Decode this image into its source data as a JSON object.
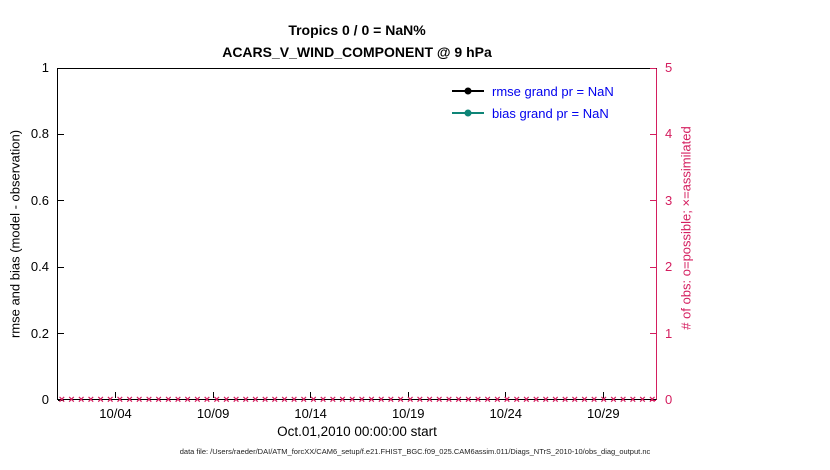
{
  "title": {
    "line1": "Tropics 0 / 0 = NaN%",
    "line2": "ACARS_V_WIND_COMPONENT @ 9 hPa"
  },
  "footer": {
    "text": "data file: /Users/raeder/DAI/ATM_forcXX/CAM6_setup/f.e21.FHIST_BGC.f09_025.CAM6assim.011/Diags_NTrS_2010-10/obs_diag_output.nc"
  },
  "colors": {
    "axis_black": "#000000",
    "right_axis_crimson": "#d41e5f",
    "legend_text_blue": "#0000ee",
    "rmse_black": "#000000",
    "bias_teal": "#0e8577",
    "obs_marker_crimson": "#d41e5f",
    "background": "#ffffff"
  },
  "chart_data": {
    "type": "line",
    "title": "Tropics 0 / 0 = NaN% — ACARS_V_WIND_COMPONENT @ 9 hPa",
    "xlabel": "Oct.01,2010 00:00:00 start",
    "ylabel_left": "rmse and bias (model - observation)",
    "ylabel_right": "# of obs: o=possible; ×=assimilated",
    "x_tick_labels": [
      "10/04",
      "10/09",
      "10/14",
      "10/19",
      "10/24",
      "10/29"
    ],
    "x_tick_days": [
      3,
      8,
      13,
      18,
      23,
      28
    ],
    "x_range_days": [
      0,
      30.75
    ],
    "ylim_left": [
      0,
      1
    ],
    "y_tick_labels_left": [
      "0",
      "0.2",
      "0.4",
      "0.6",
      "0.8",
      "1"
    ],
    "ylim_right": [
      0,
      5
    ],
    "y_tick_labels_right": [
      "0",
      "1",
      "2",
      "3",
      "4",
      "5"
    ],
    "grid": false,
    "legend_position": "top-right-inside",
    "series": [
      {
        "name": "rmse grand pr = NaN",
        "color": "#000000",
        "marker": "dot",
        "axis": "left",
        "values": []
      },
      {
        "name": "bias grand pr = NaN",
        "color": "#0e8577",
        "marker": "dot",
        "axis": "left",
        "values": []
      },
      {
        "name": "obs counts: o=possible, ×=assimilated",
        "color": "#d41e5f",
        "marker": "×",
        "axis": "right",
        "constant_value": 0,
        "marker_count": 62
      }
    ],
    "notes": "rmse and bias series are NaN (no line plotted); observation counts are 0 at every time step, drawn as a dense row of crimson × markers along the zero baseline"
  }
}
